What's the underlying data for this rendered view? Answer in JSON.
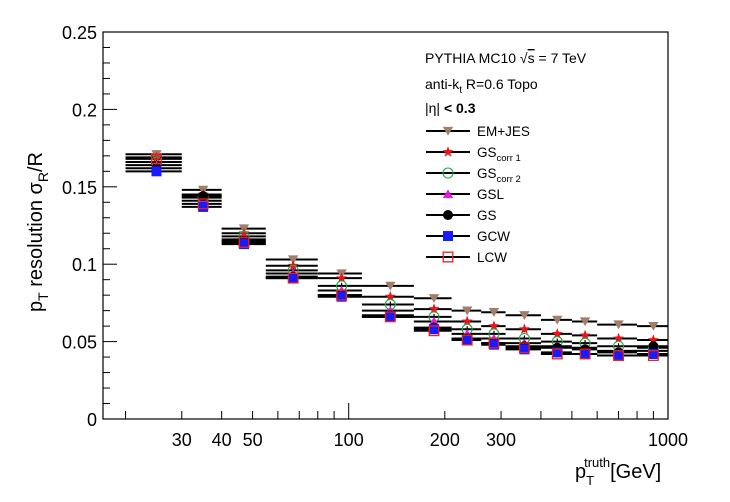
{
  "chart_data": {
    "type": "scatter",
    "title": "",
    "xlabel": "p_T^truth[GeV]",
    "xlabel_parts": {
      "base": "p",
      "sub": "T",
      "sup": "truth",
      "tail": "[GeV]"
    },
    "ylabel": "p_T resolution σ_R/R",
    "ylabel_parts": {
      "p": "p",
      "sub1": "T",
      "mid": " resolution σ",
      "sub2": "R",
      "tail": "/R"
    },
    "xscale": "log",
    "xlim": [
      17,
      1000
    ],
    "ylim": [
      0,
      0.25
    ],
    "x_ticks": [
      30,
      40,
      50,
      100,
      200,
      300,
      1000
    ],
    "x_tick_labels": [
      "30",
      "40",
      "50",
      "100",
      "200",
      "300",
      "1000"
    ],
    "y_ticks": [
      0,
      0.05,
      0.1,
      0.15,
      0.2,
      0.25
    ],
    "y_tick_labels": [
      "0",
      "0.05",
      "0.1",
      "0.15",
      "0.2",
      "0.25"
    ],
    "grid": false,
    "legend_position": "top-right",
    "annotations": {
      "line1_a": "PYTHIA MC10 ",
      "line1_sqrt": "√",
      "line1_s": "s",
      "line1_b": " = 7 TeV",
      "line2_a": "anti-k",
      "line2_sub": "t",
      "line2_b": " R=0.6 Topo",
      "line3_a": "|η|",
      "line3_b": " < 0.3"
    },
    "bin_edges": [
      20,
      30,
      40,
      55,
      80,
      110,
      160,
      210,
      260,
      310,
      400,
      500,
      600,
      800,
      1000
    ],
    "x": [
      25,
      35,
      47,
      67,
      95,
      135,
      185,
      235,
      285,
      355,
      450,
      550,
      700,
      900
    ],
    "series": [
      {
        "name": "EM+JES",
        "label_main": "EM+JES",
        "label_sub": "",
        "marker": "triangle-down",
        "color": "#a07e6a",
        "filled": true,
        "values": [
          0.171,
          0.148,
          0.123,
          0.103,
          0.094,
          0.086,
          0.078,
          0.07,
          0.069,
          0.067,
          0.064,
          0.063,
          0.061,
          0.06
        ]
      },
      {
        "name": "GS corr 1",
        "label_main": "GS",
        "label_sub": "corr 1",
        "marker": "star",
        "color": "#e8141e",
        "filled": true,
        "values": [
          0.169,
          0.145,
          0.12,
          0.099,
          0.091,
          0.079,
          0.071,
          0.063,
          0.06,
          0.058,
          0.055,
          0.054,
          0.052,
          0.051
        ]
      },
      {
        "name": "GS corr 2",
        "label_main": "GS",
        "label_sub": "corr 2",
        "marker": "circle-open",
        "color": "#25a64b",
        "filled": false,
        "values": [
          0.166,
          0.143,
          0.118,
          0.096,
          0.086,
          0.074,
          0.066,
          0.058,
          0.055,
          0.052,
          0.05,
          0.049,
          0.047,
          0.046
        ]
      },
      {
        "name": "GSL",
        "label_main": "GSL",
        "label_sub": "",
        "marker": "triangle-up",
        "color": "#e619e6",
        "filled": true,
        "values": [
          0.164,
          0.141,
          0.116,
          0.094,
          0.083,
          0.07,
          0.063,
          0.055,
          0.052,
          0.049,
          0.047,
          0.046,
          0.044,
          0.044
        ]
      },
      {
        "name": "GS",
        "label_main": "GS",
        "label_sub": "",
        "marker": "circle",
        "color": "#000000",
        "filled": true,
        "values": [
          0.162,
          0.144,
          0.115,
          0.092,
          0.08,
          0.067,
          0.059,
          0.052,
          0.049,
          0.047,
          0.046,
          0.045,
          0.043,
          0.047
        ]
      },
      {
        "name": "GCW",
        "label_main": "GCW",
        "label_sub": "",
        "marker": "square",
        "color": "#1a1aff",
        "filled": true,
        "values": [
          0.16,
          0.137,
          0.113,
          0.091,
          0.079,
          0.066,
          0.058,
          0.051,
          0.048,
          0.045,
          0.043,
          0.042,
          0.041,
          0.042
        ]
      },
      {
        "name": "LCW",
        "label_main": "LCW",
        "label_sub": "",
        "marker": "square-open",
        "color": "#e82020",
        "filled": false,
        "values": [
          0.168,
          0.139,
          0.114,
          0.091,
          0.08,
          0.066,
          0.057,
          0.051,
          0.049,
          0.046,
          0.042,
          0.042,
          0.041,
          0.041
        ]
      }
    ]
  }
}
